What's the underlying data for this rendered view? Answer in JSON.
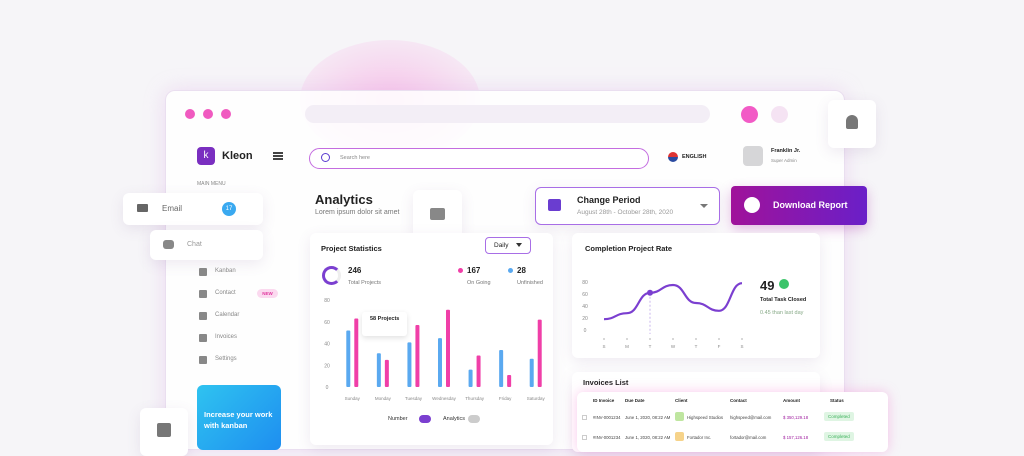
{
  "brand": "Kleon",
  "search_placeholder": "Search here",
  "language": "ENGLISH",
  "user": {
    "name": "Franklin Jr.",
    "role": "Super Admin"
  },
  "sidebar": {
    "section": "MAIN MENU",
    "items": [
      "Kanban",
      "Contact",
      "Calendar",
      "Invoices",
      "Settings"
    ],
    "badge": "NEW",
    "promo": "Increase your work with kanban"
  },
  "floating": {
    "email": "Email",
    "email_count": "17",
    "chat": "Chat"
  },
  "header": {
    "title": "Analytics",
    "subtitle": "Lorem ipsum dolor sit amet"
  },
  "period": {
    "label": "Change Period",
    "range": "August 28th - October 28th, 2020"
  },
  "download": "Download Report",
  "project_statistics": {
    "title": "Project Statistics",
    "filter": "Daily",
    "summary": [
      {
        "value": "246",
        "label": "Total Projects"
      },
      {
        "value": "167",
        "label": "On Going"
      },
      {
        "value": "28",
        "label": "Unfinished"
      }
    ],
    "chart": {
      "type": "bar",
      "categories": [
        "Sunday",
        "Monday",
        "Tuesday",
        "Wednesday",
        "Thursday",
        "Friday",
        "Saturday"
      ],
      "series": [
        {
          "color": "#5aa9f0",
          "values": [
            52,
            31,
            41,
            45,
            16,
            34,
            26
          ]
        },
        {
          "color": "#f03fa8",
          "values": [
            63,
            25,
            57,
            71,
            29,
            11,
            62
          ]
        }
      ],
      "ylim": [
        0,
        80
      ],
      "yticks": [
        0,
        20,
        40,
        60,
        80
      ],
      "tooltip": "58 Projects"
    },
    "toggles": [
      "Number",
      "Analytics"
    ]
  },
  "completion": {
    "title": "Completion Project Rate",
    "value": "49",
    "label": "Total Task Closed",
    "change": "0.45 than last day",
    "chart": {
      "type": "line",
      "categories": [
        "S",
        "M",
        "T",
        "W",
        "T",
        "F",
        "S"
      ],
      "values": [
        18,
        28,
        62,
        75,
        45,
        32,
        78
      ],
      "color": "#7b3fd0",
      "ylim": [
        0,
        80
      ],
      "yticks": [
        0,
        20,
        40,
        60,
        80
      ]
    }
  },
  "invoices": {
    "title": "Invoices List",
    "columns": [
      "ID Invoice",
      "Due Date",
      "Client",
      "Contact",
      "Amount",
      "Status"
    ],
    "rows": [
      [
        "#INV-0001234",
        "June 1, 2020, 08:22 AM",
        "Highspeed Studios",
        "highspeed@mail.com",
        "$ 350,129.18",
        "Completed"
      ],
      [
        "#INV-0001234",
        "June 1, 2020, 08:22 AM",
        "Fortador Inc.",
        "fortador@mail.com",
        "$ 157,126.18",
        "Completed"
      ]
    ]
  }
}
